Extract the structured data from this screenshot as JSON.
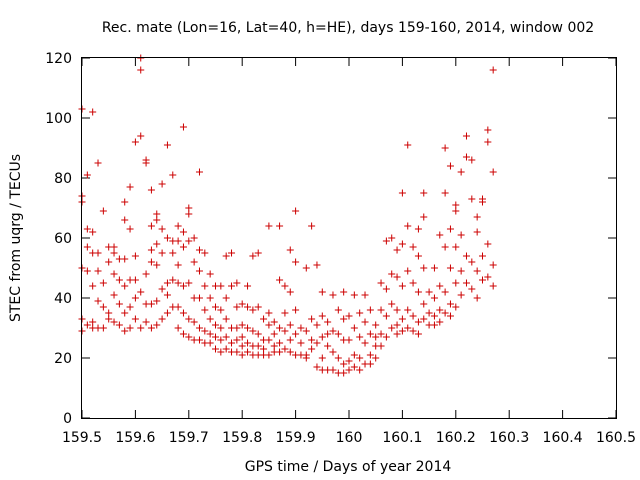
{
  "chart_data": {
    "type": "scatter",
    "title": "Rec. mate (Lon=16, Lat=40, h=HE), days 159-160, 2014, window 002",
    "xlabel": "GPS time / Days of year 2014",
    "ylabel": "STEC from uqrg / TECUs",
    "xlim": [
      159.5,
      160.5
    ],
    "ylim": [
      0,
      120
    ],
    "xticks": [
      159.5,
      159.6,
      159.7,
      159.8,
      159.9,
      160,
      160.1,
      160.2,
      160.3,
      160.4,
      160.5
    ],
    "xtick_labels": [
      "159.5",
      "159.6",
      "159.7",
      "159.8",
      "159.9",
      "160",
      "160.1",
      "160.2",
      "160.3",
      "160.4",
      "160.5"
    ],
    "yticks": [
      0,
      20,
      40,
      60,
      80,
      100,
      120
    ],
    "ytick_labels": [
      "0",
      "20",
      "40",
      "60",
      "80",
      "100",
      "120"
    ],
    "grid": false,
    "marker": "+",
    "color": "#cc0000",
    "points": [
      [
        159.5,
        103
      ],
      [
        159.5,
        74
      ],
      [
        159.5,
        72
      ],
      [
        159.5,
        50
      ],
      [
        159.5,
        33
      ],
      [
        159.5,
        29
      ],
      [
        159.51,
        81
      ],
      [
        159.51,
        63
      ],
      [
        159.51,
        57
      ],
      [
        159.51,
        49
      ],
      [
        159.51,
        31
      ],
      [
        159.52,
        102
      ],
      [
        159.52,
        62
      ],
      [
        159.52,
        55
      ],
      [
        159.52,
        44
      ],
      [
        159.52,
        32
      ],
      [
        159.52,
        30
      ],
      [
        159.53,
        85
      ],
      [
        159.53,
        55
      ],
      [
        159.53,
        49
      ],
      [
        159.53,
        39
      ],
      [
        159.53,
        30
      ],
      [
        159.54,
        69
      ],
      [
        159.54,
        45
      ],
      [
        159.54,
        37
      ],
      [
        159.54,
        30
      ],
      [
        159.55,
        57
      ],
      [
        159.55,
        52
      ],
      [
        159.55,
        35
      ],
      [
        159.55,
        33
      ],
      [
        159.56,
        57
      ],
      [
        159.56,
        55
      ],
      [
        159.56,
        48
      ],
      [
        159.56,
        41
      ],
      [
        159.56,
        32
      ],
      [
        159.57,
        53
      ],
      [
        159.57,
        46
      ],
      [
        159.57,
        38
      ],
      [
        159.57,
        31
      ],
      [
        159.58,
        72
      ],
      [
        159.58,
        66
      ],
      [
        159.58,
        53
      ],
      [
        159.58,
        44
      ],
      [
        159.58,
        35
      ],
      [
        159.58,
        29
      ],
      [
        159.59,
        77
      ],
      [
        159.59,
        63
      ],
      [
        159.59,
        46
      ],
      [
        159.59,
        37
      ],
      [
        159.59,
        30
      ],
      [
        159.6,
        92
      ],
      [
        159.6,
        54
      ],
      [
        159.6,
        46
      ],
      [
        159.6,
        40
      ],
      [
        159.6,
        33
      ],
      [
        159.61,
        120
      ],
      [
        159.61,
        116
      ],
      [
        159.61,
        94
      ],
      [
        159.61,
        42
      ],
      [
        159.61,
        30
      ],
      [
        159.62,
        86
      ],
      [
        159.62,
        85
      ],
      [
        159.62,
        48
      ],
      [
        159.62,
        38
      ],
      [
        159.62,
        32
      ],
      [
        159.63,
        76
      ],
      [
        159.63,
        64
      ],
      [
        159.63,
        56
      ],
      [
        159.63,
        52
      ],
      [
        159.63,
        38
      ],
      [
        159.63,
        30
      ],
      [
        159.64,
        68
      ],
      [
        159.64,
        66
      ],
      [
        159.64,
        58
      ],
      [
        159.64,
        51
      ],
      [
        159.64,
        39
      ],
      [
        159.64,
        31
      ],
      [
        159.65,
        78
      ],
      [
        159.65,
        63
      ],
      [
        159.65,
        55
      ],
      [
        159.65,
        43
      ],
      [
        159.65,
        33
      ],
      [
        159.66,
        91
      ],
      [
        159.66,
        60
      ],
      [
        159.66,
        45
      ],
      [
        159.66,
        41
      ],
      [
        159.66,
        35
      ],
      [
        159.67,
        81
      ],
      [
        159.67,
        59
      ],
      [
        159.67,
        55
      ],
      [
        159.67,
        46
      ],
      [
        159.67,
        37
      ],
      [
        159.68,
        64
      ],
      [
        159.68,
        59
      ],
      [
        159.68,
        51
      ],
      [
        159.68,
        45
      ],
      [
        159.68,
        37
      ],
      [
        159.68,
        30
      ],
      [
        159.69,
        97
      ],
      [
        159.69,
        62
      ],
      [
        159.69,
        57
      ],
      [
        159.69,
        44
      ],
      [
        159.69,
        35
      ],
      [
        159.69,
        28
      ],
      [
        159.7,
        70
      ],
      [
        159.7,
        68
      ],
      [
        159.7,
        59
      ],
      [
        159.7,
        45
      ],
      [
        159.7,
        33
      ],
      [
        159.7,
        27
      ],
      [
        159.71,
        60
      ],
      [
        159.71,
        52
      ],
      [
        159.71,
        40
      ],
      [
        159.71,
        32
      ],
      [
        159.71,
        26
      ],
      [
        159.72,
        82
      ],
      [
        159.72,
        56
      ],
      [
        159.72,
        49
      ],
      [
        159.72,
        40
      ],
      [
        159.72,
        30
      ],
      [
        159.72,
        26
      ],
      [
        159.73,
        55
      ],
      [
        159.73,
        44
      ],
      [
        159.73,
        36
      ],
      [
        159.73,
        29
      ],
      [
        159.73,
        25
      ],
      [
        159.74,
        48
      ],
      [
        159.74,
        40
      ],
      [
        159.74,
        33
      ],
      [
        159.74,
        28
      ],
      [
        159.74,
        25
      ],
      [
        159.75,
        44
      ],
      [
        159.75,
        37
      ],
      [
        159.75,
        31
      ],
      [
        159.75,
        27
      ],
      [
        159.75,
        23
      ],
      [
        159.76,
        44
      ],
      [
        159.76,
        36
      ],
      [
        159.76,
        30
      ],
      [
        159.76,
        26
      ],
      [
        159.76,
        22
      ],
      [
        159.77,
        54
      ],
      [
        159.77,
        40
      ],
      [
        159.77,
        33
      ],
      [
        159.77,
        27
      ],
      [
        159.77,
        23
      ],
      [
        159.78,
        55
      ],
      [
        159.78,
        44
      ],
      [
        159.78,
        30
      ],
      [
        159.78,
        25
      ],
      [
        159.78,
        22
      ],
      [
        159.79,
        45
      ],
      [
        159.79,
        37
      ],
      [
        159.79,
        30
      ],
      [
        159.79,
        26
      ],
      [
        159.79,
        22
      ],
      [
        159.8,
        38
      ],
      [
        159.8,
        31
      ],
      [
        159.8,
        27
      ],
      [
        159.8,
        24
      ],
      [
        159.8,
        21
      ],
      [
        159.81,
        44
      ],
      [
        159.81,
        37
      ],
      [
        159.81,
        30
      ],
      [
        159.81,
        25
      ],
      [
        159.81,
        22
      ],
      [
        159.82,
        54
      ],
      [
        159.82,
        36
      ],
      [
        159.82,
        29
      ],
      [
        159.82,
        24
      ],
      [
        159.82,
        21
      ],
      [
        159.83,
        55
      ],
      [
        159.83,
        37
      ],
      [
        159.83,
        28
      ],
      [
        159.83,
        24
      ],
      [
        159.83,
        21
      ],
      [
        159.84,
        33
      ],
      [
        159.84,
        26
      ],
      [
        159.84,
        23
      ],
      [
        159.84,
        21
      ],
      [
        159.85,
        64
      ],
      [
        159.85,
        35
      ],
      [
        159.85,
        31
      ],
      [
        159.85,
        26
      ],
      [
        159.85,
        21
      ],
      [
        159.86,
        32
      ],
      [
        159.86,
        28
      ],
      [
        159.86,
        24
      ],
      [
        159.86,
        22
      ],
      [
        159.87,
        64
      ],
      [
        159.87,
        46
      ],
      [
        159.87,
        30
      ],
      [
        159.87,
        25
      ],
      [
        159.87,
        22
      ],
      [
        159.88,
        44
      ],
      [
        159.88,
        35
      ],
      [
        159.88,
        29
      ],
      [
        159.88,
        23
      ],
      [
        159.89,
        56
      ],
      [
        159.89,
        42
      ],
      [
        159.89,
        31
      ],
      [
        159.89,
        26
      ],
      [
        159.89,
        22
      ],
      [
        159.9,
        69
      ],
      [
        159.9,
        52
      ],
      [
        159.9,
        36
      ],
      [
        159.9,
        28
      ],
      [
        159.9,
        21
      ],
      [
        159.91,
        30
      ],
      [
        159.91,
        25
      ],
      [
        159.91,
        21
      ],
      [
        159.92,
        50
      ],
      [
        159.92,
        29
      ],
      [
        159.92,
        21
      ],
      [
        159.92,
        20
      ],
      [
        159.93,
        64
      ],
      [
        159.93,
        33
      ],
      [
        159.93,
        26
      ],
      [
        159.93,
        23
      ],
      [
        159.94,
        51
      ],
      [
        159.94,
        31
      ],
      [
        159.94,
        25
      ],
      [
        159.94,
        17
      ],
      [
        159.95,
        42
      ],
      [
        159.95,
        34
      ],
      [
        159.95,
        27
      ],
      [
        159.95,
        20
      ],
      [
        159.95,
        16
      ],
      [
        159.96,
        32
      ],
      [
        159.96,
        28
      ],
      [
        159.96,
        24
      ],
      [
        159.96,
        16
      ],
      [
        159.97,
        41
      ],
      [
        159.97,
        29
      ],
      [
        159.97,
        22
      ],
      [
        159.97,
        16
      ],
      [
        159.98,
        36
      ],
      [
        159.98,
        28
      ],
      [
        159.98,
        20
      ],
      [
        159.98,
        15
      ],
      [
        159.99,
        42
      ],
      [
        159.99,
        33
      ],
      [
        159.99,
        26
      ],
      [
        159.99,
        18
      ],
      [
        159.99,
        15
      ],
      [
        160.0,
        34
      ],
      [
        160.0,
        26
      ],
      [
        160.0,
        19
      ],
      [
        160.0,
        16
      ],
      [
        160.01,
        41
      ],
      [
        160.01,
        30
      ],
      [
        160.01,
        21
      ],
      [
        160.01,
        17
      ],
      [
        160.02,
        35
      ],
      [
        160.02,
        27
      ],
      [
        160.02,
        20
      ],
      [
        160.02,
        16
      ],
      [
        160.03,
        41
      ],
      [
        160.03,
        32
      ],
      [
        160.03,
        25
      ],
      [
        160.03,
        18
      ],
      [
        160.04,
        36
      ],
      [
        160.04,
        28
      ],
      [
        160.04,
        21
      ],
      [
        160.04,
        18
      ],
      [
        160.05,
        31
      ],
      [
        160.05,
        27
      ],
      [
        160.05,
        24
      ],
      [
        160.05,
        20
      ],
      [
        160.06,
        45
      ],
      [
        160.06,
        36
      ],
      [
        160.06,
        28
      ],
      [
        160.06,
        24
      ],
      [
        160.07,
        59
      ],
      [
        160.07,
        43
      ],
      [
        160.07,
        34
      ],
      [
        160.07,
        27
      ],
      [
        160.08,
        60
      ],
      [
        160.08,
        48
      ],
      [
        160.08,
        38
      ],
      [
        160.08,
        30
      ],
      [
        160.09,
        56
      ],
      [
        160.09,
        47
      ],
      [
        160.09,
        36
      ],
      [
        160.09,
        31
      ],
      [
        160.09,
        28
      ],
      [
        160.1,
        75
      ],
      [
        160.1,
        58
      ],
      [
        160.1,
        44
      ],
      [
        160.1,
        33
      ],
      [
        160.1,
        29
      ],
      [
        160.11,
        91
      ],
      [
        160.11,
        64
      ],
      [
        160.11,
        49
      ],
      [
        160.11,
        36
      ],
      [
        160.11,
        30
      ],
      [
        160.12,
        57
      ],
      [
        160.12,
        45
      ],
      [
        160.12,
        34
      ],
      [
        160.12,
        29
      ],
      [
        160.13,
        63
      ],
      [
        160.13,
        54
      ],
      [
        160.13,
        42
      ],
      [
        160.13,
        32
      ],
      [
        160.13,
        28
      ],
      [
        160.14,
        75
      ],
      [
        160.14,
        67
      ],
      [
        160.14,
        50
      ],
      [
        160.14,
        38
      ],
      [
        160.14,
        33
      ],
      [
        160.15,
        42
      ],
      [
        160.15,
        35
      ],
      [
        160.15,
        31
      ],
      [
        160.16,
        50
      ],
      [
        160.16,
        40
      ],
      [
        160.16,
        34
      ],
      [
        160.16,
        31
      ],
      [
        160.17,
        61
      ],
      [
        160.17,
        44
      ],
      [
        160.17,
        36
      ],
      [
        160.17,
        32
      ],
      [
        160.18,
        90
      ],
      [
        160.18,
        75
      ],
      [
        160.18,
        57
      ],
      [
        160.18,
        42
      ],
      [
        160.18,
        35
      ],
      [
        160.19,
        84
      ],
      [
        160.19,
        63
      ],
      [
        160.19,
        50
      ],
      [
        160.19,
        38
      ],
      [
        160.19,
        34
      ],
      [
        160.2,
        71
      ],
      [
        160.2,
        69
      ],
      [
        160.2,
        57
      ],
      [
        160.2,
        45
      ],
      [
        160.2,
        37
      ],
      [
        160.21,
        82
      ],
      [
        160.21,
        61
      ],
      [
        160.21,
        49
      ],
      [
        160.21,
        41
      ],
      [
        160.22,
        94
      ],
      [
        160.22,
        87
      ],
      [
        160.22,
        54
      ],
      [
        160.22,
        45
      ],
      [
        160.23,
        86
      ],
      [
        160.23,
        73
      ],
      [
        160.23,
        52
      ],
      [
        160.23,
        43
      ],
      [
        160.24,
        67
      ],
      [
        160.24,
        62
      ],
      [
        160.24,
        49
      ],
      [
        160.24,
        40
      ],
      [
        160.25,
        73
      ],
      [
        160.25,
        72
      ],
      [
        160.25,
        54
      ],
      [
        160.25,
        46
      ],
      [
        160.26,
        96
      ],
      [
        160.26,
        92
      ],
      [
        160.26,
        58
      ],
      [
        160.26,
        47
      ],
      [
        160.27,
        116
      ],
      [
        160.27,
        82
      ],
      [
        160.27,
        51
      ],
      [
        160.27,
        44
      ]
    ]
  }
}
